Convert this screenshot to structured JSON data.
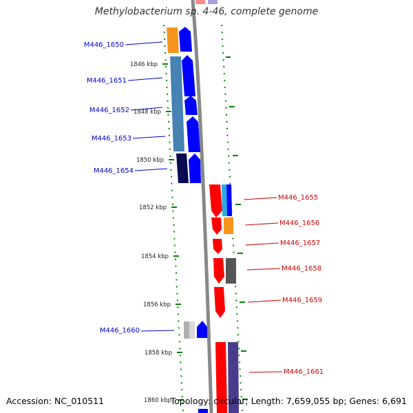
{
  "title": "Methylobacterium sp. 4-46, complete genome",
  "footer": {
    "accession": "Accession: NC_010511",
    "summary": "Topology: circular; Length: 7,659,055 bp; Genes: 6,691"
  },
  "colors": {
    "forward_label": "#0000cc",
    "reverse_label": "#cc0000",
    "backbone": "#888888",
    "tick": "#008000"
  },
  "ticks": [
    {
      "label": "1846 kbp"
    },
    {
      "label": "1848 kbp"
    },
    {
      "label": "1850 kbp"
    },
    {
      "label": "1852 kbp"
    },
    {
      "label": "1854 kbp"
    },
    {
      "label": "1856 kbp"
    },
    {
      "label": "1858 kbp"
    },
    {
      "label": "1860 kbp"
    }
  ],
  "genes_forward": [
    {
      "name": "M446_1650",
      "cog_color": "#f7941d"
    },
    {
      "name": "M446_1651",
      "cog_color": "#4682b4"
    },
    {
      "name": "M446_1652",
      "cog_color": "#4682b4"
    },
    {
      "name": "M446_1653",
      "cog_color": "#4682b4"
    },
    {
      "name": "M446_1654",
      "cog_color": "#0a0a50"
    },
    {
      "name": "M446_1660",
      "cog_color": "#b0b0b0"
    }
  ],
  "genes_reverse": [
    {
      "name": "M446_1655",
      "cog_color": "#29abe2"
    },
    {
      "name": "M446_1656",
      "cog_color": "#f7941d"
    },
    {
      "name": "M446_1657",
      "cog_color": ""
    },
    {
      "name": "M446_1658",
      "cog_color": "#555555"
    },
    {
      "name": "M446_1659",
      "cog_color": ""
    },
    {
      "name": "M446_1661",
      "cog_color": "#4a3c8c"
    }
  ]
}
